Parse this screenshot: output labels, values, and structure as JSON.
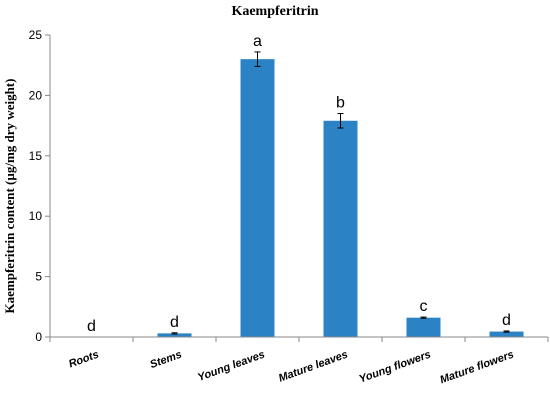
{
  "chart_data": {
    "type": "bar",
    "title": "Kaempferitrin",
    "ylabel": "Kaempferitrin content (µg/mg dry weight)",
    "xlabel": "",
    "ylim": [
      0,
      25
    ],
    "yticks": [
      0,
      5,
      10,
      15,
      20,
      25
    ],
    "grid": false,
    "bar_color": "#2B83C6",
    "categories": [
      "Roots",
      "Stems",
      "Young leaves",
      "Mature leaves",
      "Young flowers",
      "Mature flowers"
    ],
    "values": [
      0,
      0.3,
      23.0,
      17.9,
      1.6,
      0.45
    ],
    "errors": [
      0,
      0.05,
      0.6,
      0.6,
      0.05,
      0.05
    ],
    "significance": [
      "d",
      "d",
      "a",
      "b",
      "c",
      "d"
    ]
  }
}
